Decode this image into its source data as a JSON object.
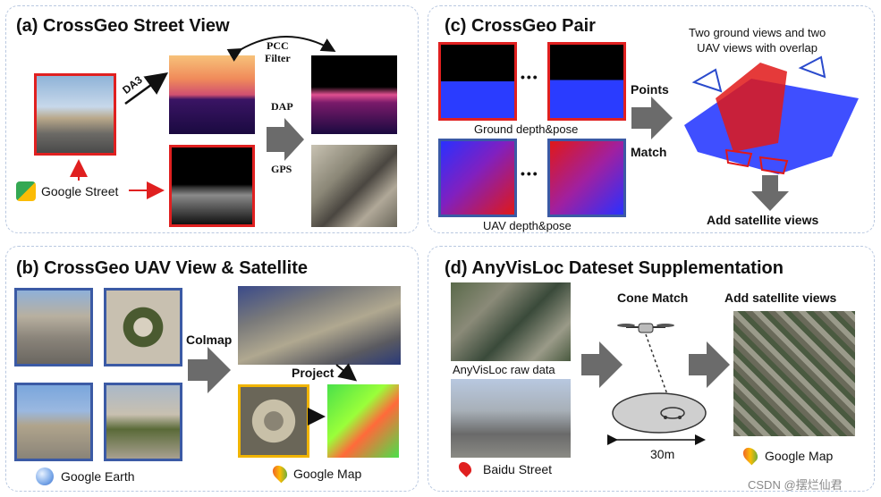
{
  "panel_a": {
    "title": "(a) CrossGeo Street View",
    "da3": "DA3",
    "pcc_filter": "PCC\nFilter",
    "dap": "DAP",
    "gps": "GPS",
    "google_street": "Google Street"
  },
  "panel_b": {
    "title": "(b) CrossGeo UAV View & Satellite",
    "colmap": "Colmap",
    "project": "Project",
    "google_earth": "Google Earth",
    "google_map": "Google Map"
  },
  "panel_c": {
    "title": "(c) CrossGeo Pair",
    "ground_depth": "Ground depth&pose",
    "uav_depth": "UAV depth&pose",
    "points": "Points",
    "match": "Match",
    "overlap_note": "Two ground views and two\nUAV views with overlap",
    "add_satellite": "Add  satellite views",
    "ellipsis": "•••"
  },
  "panel_d": {
    "title": "(d) AnyVisLoc Dateset Supplementation",
    "raw_data": "AnyVisLoc raw data",
    "baidu_street": "Baidu Street",
    "cone_match": "Cone Match",
    "distance": "30m",
    "add_satellite": "Add  satellite views",
    "google_map": "Google Map"
  },
  "watermark": "CSDN @摆烂仙君"
}
